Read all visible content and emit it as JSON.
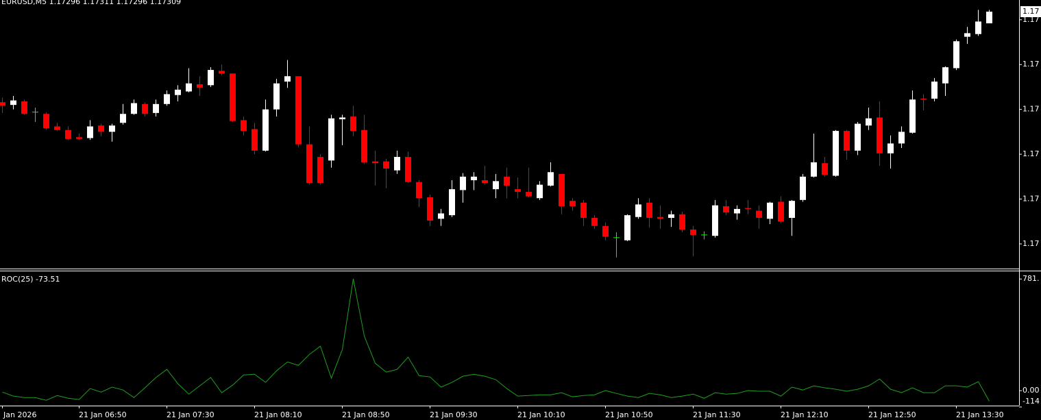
{
  "chart_data": [
    {
      "type": "candlestick",
      "title": "EURUSD,M5  1.17296 1.17311 1.17296 1.17309",
      "categories": [
        "Jan 2026",
        null,
        null,
        null,
        null,
        null,
        null,
        "21 Jan 06:50",
        null,
        null,
        null,
        null,
        null,
        null,
        null,
        "21 Jan 07:30",
        null,
        null,
        null,
        null,
        null,
        null,
        null,
        "21 Jan 08:10",
        null,
        null,
        null,
        null,
        null,
        null,
        null,
        "21 Jan 08:50",
        null,
        null,
        null,
        null,
        null,
        null,
        null,
        "21 Jan 09:30",
        null,
        null,
        null,
        null,
        null,
        null,
        null,
        "21 Jan 10:10",
        null,
        null,
        null,
        null,
        null,
        null,
        null,
        "21 Jan 10:50",
        null,
        null,
        null,
        null,
        null,
        null,
        null,
        "21 Jan 11:30",
        null,
        null,
        null,
        null,
        null,
        null,
        null,
        "21 Jan 12:10",
        null,
        null,
        null,
        null,
        null,
        null,
        null,
        "21 Jan 12:50",
        null,
        null,
        null,
        null,
        null,
        null,
        null,
        "21 Jan 13:30",
        null,
        null,
        null
      ],
      "open": [
        1.17208,
        1.17205,
        1.17209,
        1.17197,
        1.17195,
        1.17181,
        1.17177,
        1.17169,
        1.17168,
        1.17182,
        1.17175,
        1.17185,
        1.17195,
        1.17206,
        1.17196,
        1.17206,
        1.17216,
        1.1722,
        1.17228,
        1.17227,
        1.17243,
        1.1724,
        1.17188,
        1.17178,
        1.17154,
        1.172,
        1.17231,
        1.17237,
        1.17161,
        1.17147,
        1.17143,
        1.17189,
        1.17192,
        1.17177,
        1.17142,
        1.17142,
        1.17132,
        1.17147,
        1.17119,
        1.17102,
        1.17078,
        1.17082,
        1.1711,
        1.17121,
        1.17121,
        1.17111,
        1.17125,
        1.17111,
        1.17108,
        1.17101,
        1.17115,
        1.17128,
        1.17098,
        1.17096,
        1.17079,
        1.1707,
        1.17057,
        1.17054,
        1.1708,
        1.17096,
        1.1708,
        1.17079,
        1.17083,
        1.17066,
        1.1706,
        1.17059,
        1.17092,
        1.17084,
        1.1709,
        1.17087,
        1.17078,
        1.17097,
        1.17079,
        1.17099,
        1.17125,
        1.1714,
        1.17126,
        1.17176,
        1.17154,
        1.17182,
        1.17191,
        1.17151,
        1.17162,
        1.17174,
        1.17212,
        1.17212,
        1.17229,
        1.17246,
        1.17281,
        1.17284,
        1.17296
      ],
      "high": [
        1.17213,
        1.17215,
        1.17211,
        1.17202,
        1.17197,
        1.17185,
        1.17181,
        1.17173,
        1.17188,
        1.17184,
        1.17184,
        1.17206,
        1.17211,
        1.17208,
        1.17211,
        1.17221,
        1.17227,
        1.17246,
        1.17237,
        1.17247,
        1.1725,
        1.1724,
        1.17192,
        1.17185,
        1.17211,
        1.17234,
        1.17255,
        1.17237,
        1.17181,
        1.1715,
        1.17194,
        1.17194,
        1.17204,
        1.17194,
        1.17154,
        1.17145,
        1.17154,
        1.17153,
        1.17121,
        1.17105,
        1.17089,
        1.17121,
        1.17129,
        1.1713,
        1.17137,
        1.17128,
        1.17135,
        1.17124,
        1.17135,
        1.1712,
        1.17141,
        1.17128,
        1.17101,
        1.17099,
        1.17082,
        1.17074,
        1.17063,
        1.17083,
        1.17101,
        1.17101,
        1.17093,
        1.17087,
        1.17086,
        1.1707,
        1.17064,
        1.17099,
        1.17099,
        1.17093,
        1.17099,
        1.17093,
        1.17097,
        1.17103,
        1.17099,
        1.17128,
        1.17173,
        1.17147,
        1.17177,
        1.17177,
        1.17186,
        1.17202,
        1.17209,
        1.17171,
        1.17181,
        1.17221,
        1.17217,
        1.17235,
        1.17248,
        1.17278,
        1.17292,
        1.17311,
        1.17311
      ],
      "low": [
        1.17196,
        1.172,
        1.17194,
        1.17186,
        1.17177,
        1.17176,
        1.17166,
        1.17166,
        1.17166,
        1.1717,
        1.17164,
        1.17183,
        1.17194,
        1.17192,
        1.17192,
        1.17204,
        1.17209,
        1.17219,
        1.17215,
        1.17225,
        1.17238,
        1.17186,
        1.17171,
        1.1715,
        1.17153,
        1.17192,
        1.17224,
        1.17158,
        1.17116,
        1.17116,
        1.17135,
        1.1716,
        1.1717,
        1.17139,
        1.17115,
        1.17112,
        1.17128,
        1.17118,
        1.17091,
        1.1707,
        1.1707,
        1.1708,
        1.17096,
        1.1711,
        1.17116,
        1.17101,
        1.17101,
        1.17101,
        1.17102,
        1.17099,
        1.17114,
        1.17083,
        1.17087,
        1.1707,
        1.17067,
        1.17054,
        1.17035,
        1.17053,
        1.17078,
        1.17068,
        1.17067,
        1.17069,
        1.17063,
        1.17036,
        1.17055,
        1.17057,
        1.17082,
        1.17077,
        1.17083,
        1.17067,
        1.17072,
        1.17073,
        1.17059,
        1.17097,
        1.17124,
        1.17125,
        1.17125,
        1.17144,
        1.17149,
        1.17177,
        1.17137,
        1.17134,
        1.17157,
        1.17173,
        1.17199,
        1.17209,
        1.17215,
        1.17244,
        1.17273,
        1.17282,
        1.17296
      ],
      "close": [
        1.17204,
        1.1721,
        1.17195,
        1.17197,
        1.17179,
        1.17177,
        1.17167,
        1.17167,
        1.17181,
        1.17175,
        1.17182,
        1.17195,
        1.17207,
        1.17195,
        1.17206,
        1.17217,
        1.17222,
        1.17229,
        1.17224,
        1.17244,
        1.1724,
        1.17187,
        1.17176,
        1.17154,
        1.172,
        1.17229,
        1.17237,
        1.17161,
        1.17118,
        1.17118,
        1.1719,
        1.17191,
        1.17176,
        1.17141,
        1.1714,
        1.17134,
        1.17147,
        1.17119,
        1.17101,
        1.17076,
        1.17084,
        1.17111,
        1.17125,
        1.17125,
        1.17118,
        1.1712,
        1.17115,
        1.17108,
        1.17103,
        1.17116,
        1.1713,
        1.17092,
        1.17092,
        1.17079,
        1.1707,
        1.17058,
        1.17057,
        1.17082,
        1.17094,
        1.17079,
        1.17078,
        1.17083,
        1.17066,
        1.1706,
        1.1706,
        1.17093,
        1.17085,
        1.17089,
        1.17089,
        1.17079,
        1.17096,
        1.17075,
        1.17098,
        1.17125,
        1.17141,
        1.17127,
        1.17176,
        1.17154,
        1.17184,
        1.1719,
        1.17151,
        1.17162,
        1.17175,
        1.17211,
        1.17211,
        1.17231,
        1.17247,
        1.17276,
        1.17285,
        1.17298,
        1.17309
      ],
      "up_color": "#ffffff",
      "down_color": "#ff0000",
      "doji_color": "#00ff00",
      "ylim": [
        1.17024,
        1.17322
      ],
      "yticks": [
        {
          "value": 1.173,
          "label": "1.17"
        },
        {
          "value": 1.1725,
          "label": "1.17"
        },
        {
          "value": 1.172,
          "label": "1.17"
        },
        {
          "value": 1.1715,
          "label": "1.17"
        },
        {
          "value": 1.171,
          "label": "1.17"
        },
        {
          "value": 1.1705,
          "label": "1.17"
        }
      ],
      "current_price": {
        "value": 1.17309,
        "label": "1.17"
      }
    },
    {
      "type": "line",
      "title": "ROC(25) -73.51",
      "values": [
        -10,
        -38,
        -48,
        -48,
        -67,
        -34,
        -53,
        -62,
        15,
        -10,
        25,
        5,
        -48,
        20,
        92,
        149,
        49,
        -24,
        34,
        92,
        -14,
        39,
        110,
        115,
        58,
        139,
        201,
        177,
        254,
        311,
        87,
        287,
        782,
        383,
        192,
        130,
        149,
        235,
        105,
        96,
        25,
        58,
        101,
        115,
        101,
        77,
        15,
        -38,
        -34,
        -29,
        -29,
        -14,
        -43,
        -34,
        -29,
        1,
        -19,
        -38,
        -48,
        -19,
        -29,
        -48,
        -38,
        -24,
        -53,
        -14,
        -24,
        -19,
        1,
        -4,
        -4,
        -38,
        25,
        5,
        34,
        20,
        10,
        -4,
        10,
        34,
        82,
        10,
        -14,
        20,
        -14,
        -14,
        34,
        34,
        25,
        63,
        -73.51
      ],
      "color": "#1fa01f",
      "ylim": [
        -114,
        830
      ],
      "yticks": [
        {
          "value": 781,
          "label": "781."
        },
        {
          "value": 0,
          "label": "0.00"
        },
        -114
      ]
    }
  ]
}
